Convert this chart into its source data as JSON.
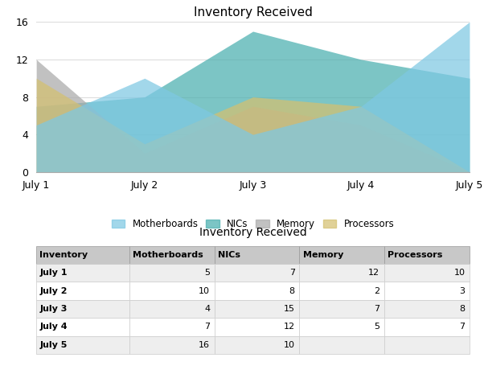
{
  "title": "Inventory Received",
  "x_labels": [
    "July 1",
    "July 2",
    "July 3",
    "July 4",
    "July 5"
  ],
  "series": {
    "Motherboards": [
      5,
      10,
      4,
      7,
      16
    ],
    "NICs": [
      7,
      8,
      15,
      12,
      10
    ],
    "Memory": [
      12,
      2,
      7,
      5,
      0
    ],
    "Processors": [
      10,
      3,
      8,
      7,
      0
    ]
  },
  "colors": {
    "Motherboards": "#7EC8E3",
    "NICs": "#4AAFAF",
    "Memory": "#AAAAAA",
    "Processors": "#D4C070"
  },
  "draw_order": [
    "NICs",
    "Memory",
    "Processors",
    "Motherboards"
  ],
  "legend_order": [
    "Motherboards",
    "NICs",
    "Memory",
    "Processors"
  ],
  "alpha": 0.72,
  "ylim": [
    0,
    16
  ],
  "yticks": [
    0,
    4,
    8,
    12,
    16
  ],
  "grid_color": "#dddddd",
  "table_title": "Inventory Received",
  "table_headers": [
    "Inventory",
    "Motherboards",
    "NICs",
    "Memory",
    "Processors"
  ],
  "table_data": [
    [
      "July 1",
      "5",
      "7",
      "12",
      "10"
    ],
    [
      "July 2",
      "10",
      "8",
      "2",
      "3"
    ],
    [
      "July 3",
      "4",
      "15",
      "7",
      "8"
    ],
    [
      "July 4",
      "7",
      "12",
      "5",
      "7"
    ],
    [
      "July 5",
      "16",
      "10",
      "",
      ""
    ]
  ],
  "header_bg": "#C8C8C8",
  "row_bg_odd": "#EEEEEE",
  "row_bg_even": "#FFFFFF",
  "fig_bg": "#FFFFFF"
}
